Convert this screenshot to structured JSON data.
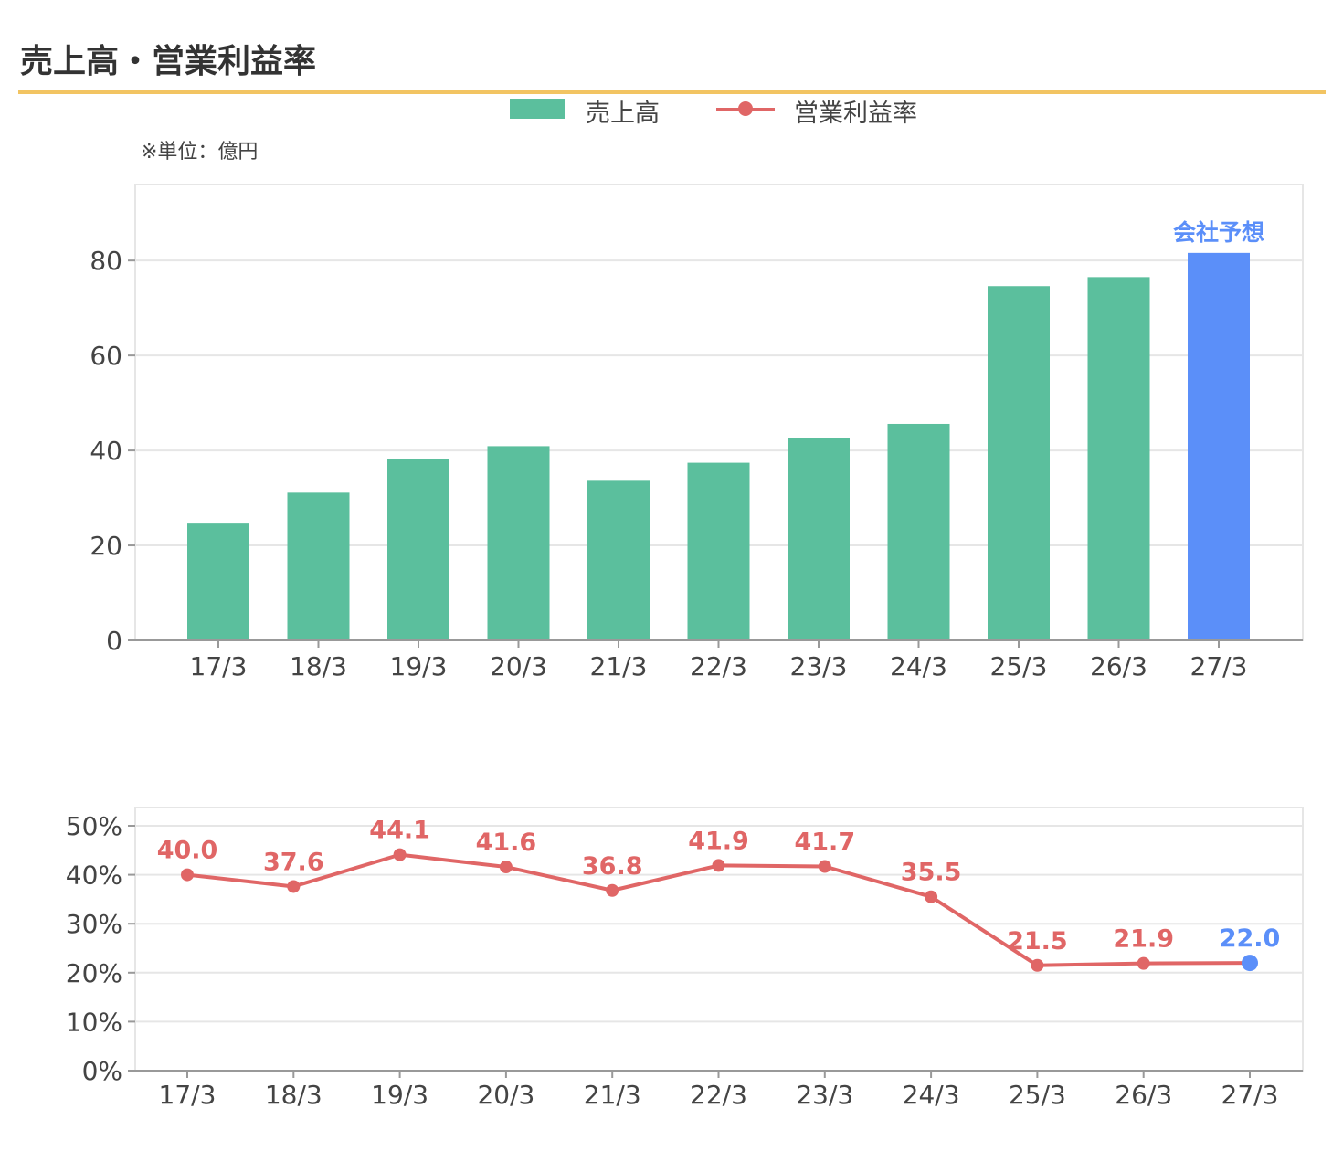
{
  "title": "売上高・営業利益率",
  "legend": {
    "bar_label": "売上高",
    "line_label": "営業利益率"
  },
  "unit_note": "※単位：億円",
  "colors": {
    "bar": "#5bbf9d",
    "forecast": "#5b8ff9",
    "line": "#e06666",
    "accent_rule": "#f2c462",
    "grid": "#e6e6e6"
  },
  "chart_data": [
    {
      "type": "bar",
      "categories": [
        "17/3",
        "18/3",
        "19/3",
        "20/3",
        "21/3",
        "22/3",
        "23/3",
        "24/3",
        "25/3",
        "26/3",
        "27/3"
      ],
      "series": [
        {
          "name": "売上高",
          "values": [
            24.6,
            31.1,
            38.1,
            40.9,
            33.6,
            37.4,
            42.7,
            45.6,
            74.6,
            76.5,
            81.6
          ]
        }
      ],
      "forecast_index": 10,
      "forecast_label": "会社予想",
      "yticks": [
        0,
        20,
        40,
        60,
        80
      ],
      "ylim": [
        0,
        96
      ],
      "grid": true
    },
    {
      "type": "line",
      "categories": [
        "17/3",
        "18/3",
        "19/3",
        "20/3",
        "21/3",
        "22/3",
        "23/3",
        "24/3",
        "25/3",
        "26/3",
        "27/3"
      ],
      "series": [
        {
          "name": "営業利益率",
          "values": [
            40.0,
            37.6,
            44.1,
            41.6,
            36.8,
            41.9,
            41.7,
            35.5,
            21.5,
            21.9,
            22.0
          ],
          "labels": [
            "40.0",
            "37.6",
            "44.1",
            "41.6",
            "36.8",
            "41.9",
            "41.7",
            "35.5",
            "21.5",
            "21.9",
            "22.0"
          ]
        }
      ],
      "forecast_index": 10,
      "yticks": [
        "0%",
        "10%",
        "20%",
        "30%",
        "40%",
        "50%"
      ],
      "ylim": [
        0,
        50
      ],
      "grid": true
    }
  ]
}
